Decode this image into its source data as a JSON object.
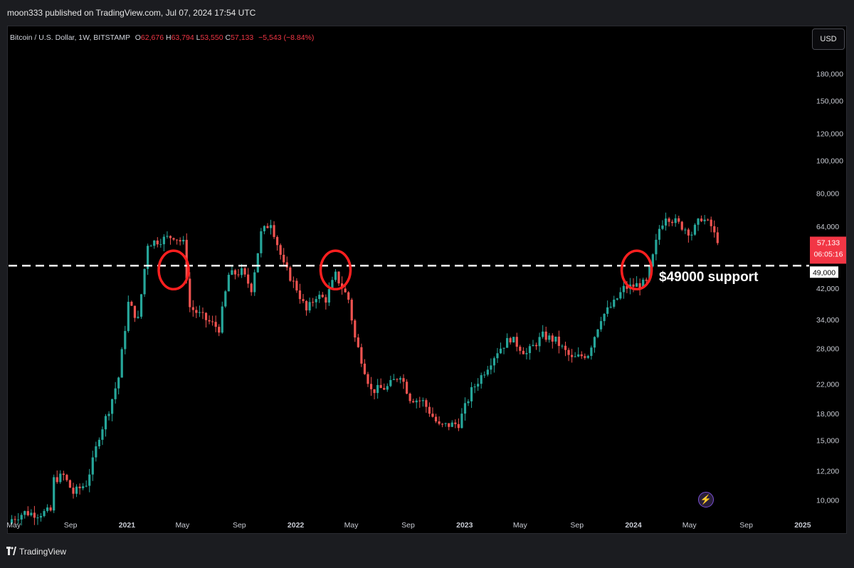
{
  "header": {
    "published_line": "moon333 published on TradingView.com, Jul 07, 2024 17:54 UTC"
  },
  "legend": {
    "symbol": "Bitcoin / U.S. Dollar, 1W, BITSTAMP",
    "open_label": "O",
    "open_value": "62,676",
    "high_label": "H",
    "high_value": "63,794",
    "low_label": "L",
    "low_value": "53,550",
    "close_label": "C",
    "close_value": "57,133",
    "change": "−5,543 (−8.84%)"
  },
  "currency_button": "USD",
  "price_tags": {
    "last_price": "57,133",
    "countdown": "06:05:16",
    "support_level": "49,000"
  },
  "annotation": {
    "support_text": "$49000 support"
  },
  "footer": {
    "brand": "TradingView"
  },
  "colors": {
    "up": "#26a69a",
    "down": "#ef5350",
    "circle": "#ff1f1f",
    "background": "#000000",
    "line": "#ffffff"
  },
  "icons": {
    "lightning": "lightning-icon",
    "logo": "tradingview-logo-icon"
  },
  "chart_data": {
    "type": "candlestick",
    "title": "Bitcoin / U.S. Dollar, 1W, BITSTAMP",
    "y_scale": "log",
    "y_ticks": [
      10000,
      12200,
      15000,
      18000,
      22000,
      28000,
      34000,
      42000,
      49000,
      64000,
      80000,
      100000,
      120000,
      150000,
      180000
    ],
    "y_tick_labels": [
      "10,000",
      "12,200",
      "15,000",
      "18,000",
      "22,000",
      "28,000",
      "34,000",
      "42,000",
      "49,000",
      "64,000",
      "80,000",
      "100,000",
      "120,000",
      "150,000",
      "180,000"
    ],
    "x_ticks": [
      "2020-05-01",
      "2020-09-01",
      "2021-01-01",
      "2021-05-01",
      "2021-09-01",
      "2022-01-01",
      "2022-05-01",
      "2022-09-01",
      "2023-01-01",
      "2023-05-01",
      "2023-09-01",
      "2024-01-01",
      "2024-05-01",
      "2024-09-01",
      "2025-01-01"
    ],
    "x_tick_labels": [
      "May",
      "Sep",
      "2021",
      "May",
      "Sep",
      "2022",
      "May",
      "Sep",
      "2023",
      "May",
      "Sep",
      "2024",
      "May",
      "Sep",
      "2025"
    ],
    "x_range": [
      "2020-04-20",
      "2025-01-15"
    ],
    "y_range": [
      9200,
      220000
    ],
    "support_line": 49000,
    "last_close": 57133,
    "circled_dates": [
      "2021-04-12",
      "2022-03-28",
      "2024-01-08"
    ],
    "path": [
      [
        "2020-04-27",
        8800
      ],
      [
        "2020-05-25",
        9200
      ],
      [
        "2020-06-22",
        9100
      ],
      [
        "2020-07-20",
        9300
      ],
      [
        "2020-07-27",
        11500
      ],
      [
        "2020-08-17",
        11800
      ],
      [
        "2020-09-07",
        10500
      ],
      [
        "2020-10-05",
        11200
      ],
      [
        "2020-10-19",
        13000
      ],
      [
        "2020-11-02",
        15500
      ],
      [
        "2020-11-23",
        18500
      ],
      [
        "2020-12-14",
        23000
      ],
      [
        "2021-01-04",
        38000
      ],
      [
        "2021-01-25",
        34000
      ],
      [
        "2021-02-15",
        57000
      ],
      [
        "2021-03-08",
        58000
      ],
      [
        "2021-04-12",
        60000
      ],
      [
        "2021-05-03",
        57000
      ],
      [
        "2021-05-17",
        37000
      ],
      [
        "2021-06-21",
        34000
      ],
      [
        "2021-07-19",
        32000
      ],
      [
        "2021-08-09",
        46000
      ],
      [
        "2021-09-06",
        47000
      ],
      [
        "2021-09-27",
        42000
      ],
      [
        "2021-10-18",
        61000
      ],
      [
        "2021-11-08",
        66000
      ],
      [
        "2021-12-06",
        49000
      ],
      [
        "2022-01-03",
        42000
      ],
      [
        "2022-01-24",
        36000
      ],
      [
        "2022-02-14",
        40000
      ],
      [
        "2022-03-07",
        39000
      ],
      [
        "2022-03-28",
        46000
      ],
      [
        "2022-04-25",
        39000
      ],
      [
        "2022-05-09",
        30000
      ],
      [
        "2022-06-13",
        21000
      ],
      [
        "2022-07-18",
        21500
      ],
      [
        "2022-08-15",
        23500
      ],
      [
        "2022-09-05",
        20000
      ],
      [
        "2022-10-03",
        19500
      ],
      [
        "2022-11-07",
        16500
      ],
      [
        "2022-12-19",
        16800
      ],
      [
        "2023-01-16",
        21000
      ],
      [
        "2023-02-13",
        24000
      ],
      [
        "2023-03-13",
        27500
      ],
      [
        "2023-04-10",
        30000
      ],
      [
        "2023-05-15",
        27000
      ],
      [
        "2023-06-19",
        30500
      ],
      [
        "2023-07-17",
        29500
      ],
      [
        "2023-08-21",
        26000
      ],
      [
        "2023-09-25",
        27000
      ],
      [
        "2023-10-23",
        34500
      ],
      [
        "2023-11-20",
        38000
      ],
      [
        "2023-12-11",
        42000
      ],
      [
        "2024-01-08",
        43000
      ],
      [
        "2024-01-29",
        43500
      ],
      [
        "2024-02-12",
        52000
      ],
      [
        "2024-02-26",
        63000
      ],
      [
        "2024-03-11",
        69000
      ],
      [
        "2024-03-25",
        67000
      ],
      [
        "2024-04-15",
        64000
      ],
      [
        "2024-05-06",
        61000
      ],
      [
        "2024-05-27",
        68000
      ],
      [
        "2024-06-17",
        64000
      ],
      [
        "2024-07-01",
        57133
      ]
    ]
  }
}
